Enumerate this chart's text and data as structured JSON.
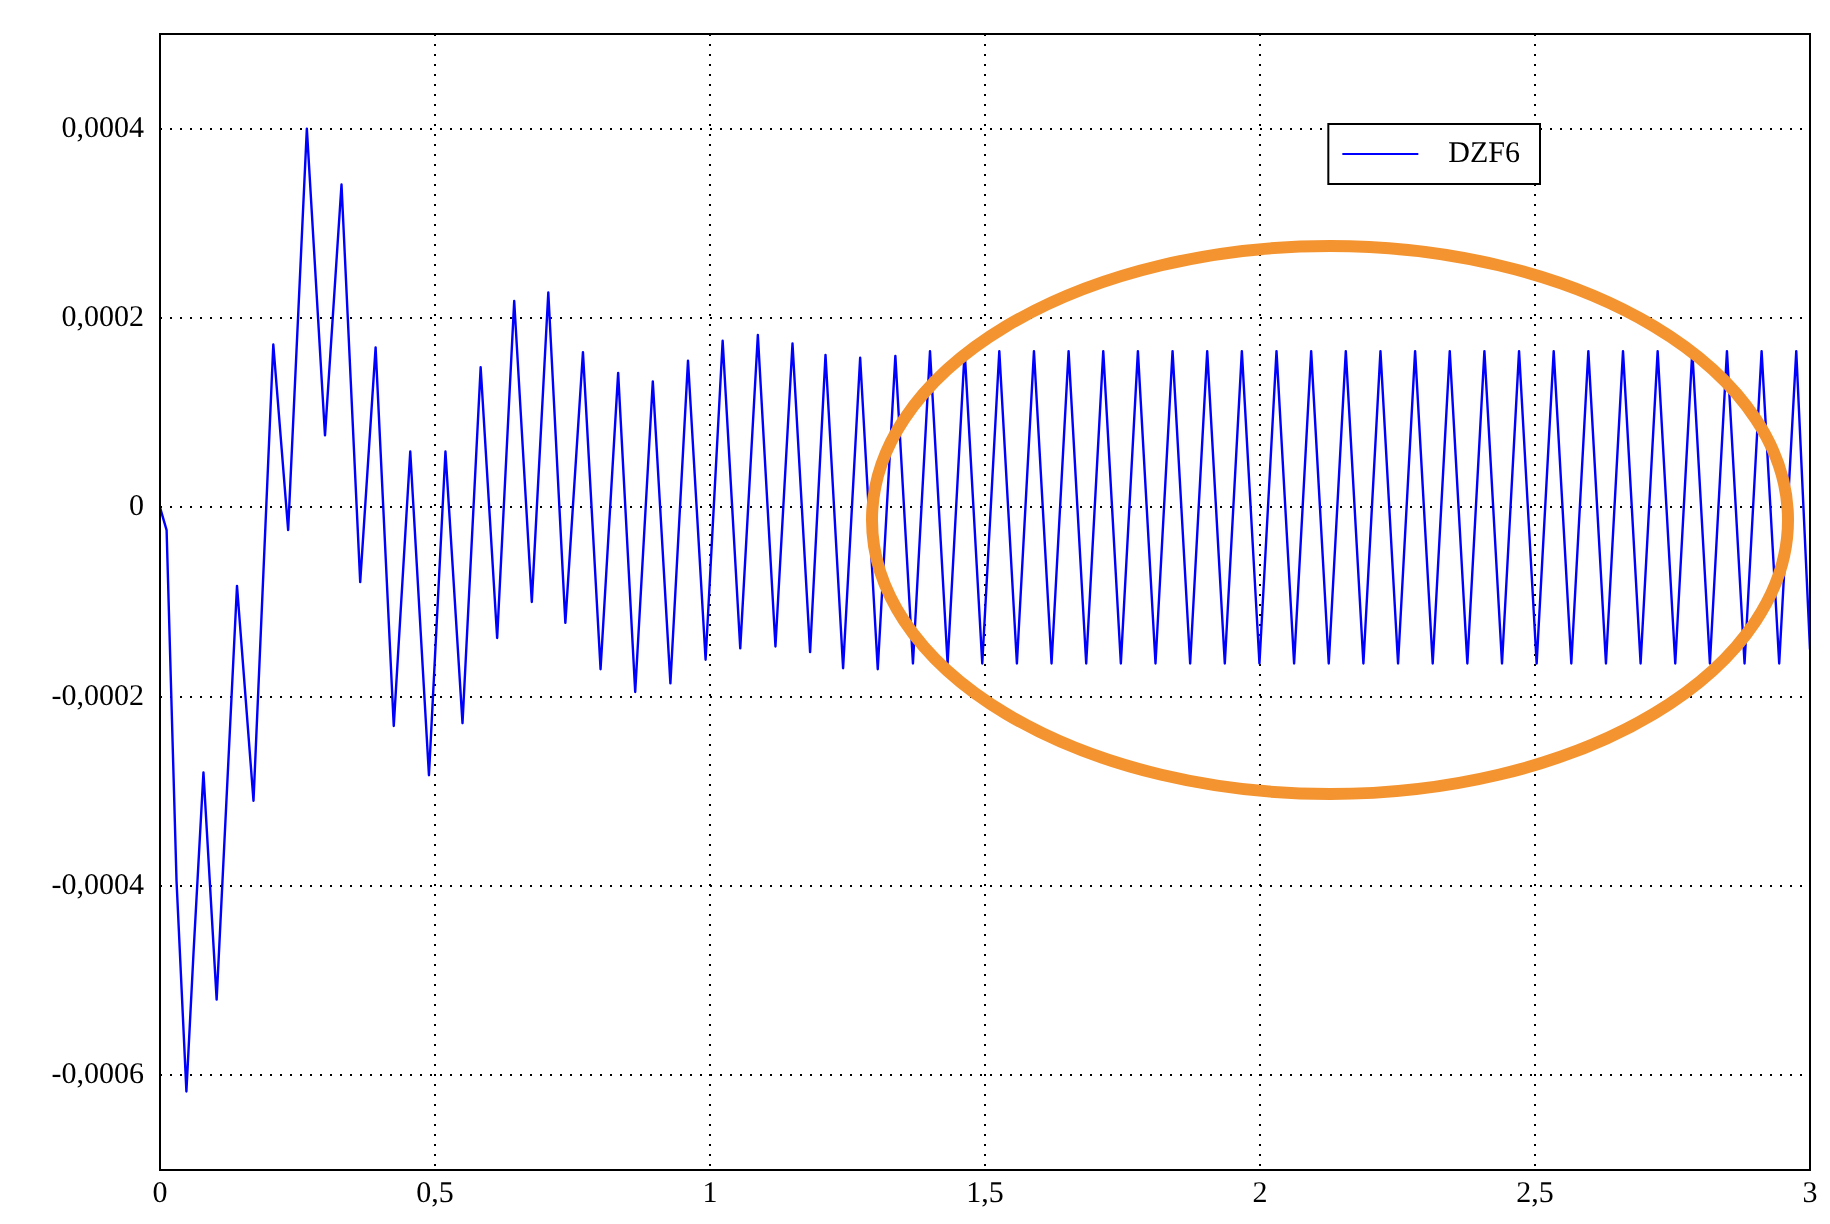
{
  "chart_data": {
    "type": "line",
    "legend": "top right",
    "grid": true,
    "line_style": "solid",
    "marker": "none",
    "xlim": [
      0,
      3
    ],
    "ylim": [
      -0.0007,
      0.0005
    ],
    "xticks": [
      0,
      {
        "value": 0.5,
        "label": "0,5"
      },
      1,
      {
        "value": 1.5,
        "label": "1,5"
      },
      2,
      {
        "value": 2.5,
        "label": "2,5"
      },
      3
    ],
    "yticks": [
      {
        "value": -0.0006,
        "label": "-0,0006"
      },
      {
        "value": -0.0004,
        "label": "-0,0004"
      },
      {
        "value": -0.0002,
        "label": "-0,0002"
      },
      0,
      {
        "value": 0.0002,
        "label": "0,0002"
      },
      {
        "value": 0.0004,
        "label": "0,0004"
      }
    ],
    "x": [
      0,
      0.012,
      0.03,
      0.048,
      0.061,
      0.079,
      0.103,
      0.14,
      0.17,
      0.206,
      0.233,
      0.267,
      0.3,
      0.33,
      0.364,
      0.392,
      0.425,
      0.455,
      0.489,
      0.519,
      0.55,
      0.583,
      0.613,
      0.644,
      0.676,
      0.706,
      0.737,
      0.769,
      0.801,
      0.833,
      0.864,
      0.896,
      0.928,
      0.96,
      0.992,
      1.023,
      1.055,
      1.087,
      1.119,
      1.15,
      1.182,
      1.21,
      1.242,
      1.273,
      1.305,
      1.337,
      1.369,
      1.4,
      1.432,
      1.463,
      1.495,
      1.526,
      1.558,
      1.589,
      1.621,
      1.652,
      1.684,
      1.715,
      1.747,
      1.778,
      1.81,
      1.841,
      1.873,
      1.904,
      1.936,
      1.967,
      1.999,
      2.03,
      2.062,
      2.093,
      2.125,
      2.156,
      2.188,
      2.219,
      2.251,
      2.282,
      2.314,
      2.345,
      2.377,
      2.408,
      2.44,
      2.471,
      2.503,
      2.534,
      2.566,
      2.597,
      2.629,
      2.66,
      2.692,
      2.723,
      2.755,
      2.786,
      2.818,
      2.849,
      2.881,
      2.912,
      2.944,
      2.975,
      3.0
    ],
    "series": [
      {
        "name": "DZF6",
        "color": "#0000ff",
        "values": [
          0,
          -2.4e-05,
          -0.000394,
          -0.000617,
          -0.00047,
          -0.00028,
          -0.00052,
          -8.3e-05,
          -0.00031,
          0.000172,
          -2.4e-05,
          0.0004,
          7.6e-05,
          0.000341,
          -7.9e-05,
          0.000169,
          -0.000231,
          5.9e-05,
          -0.000283,
          5.9e-05,
          -0.000228,
          0.000148,
          -0.000138,
          0.000218,
          -0.0001,
          0.000227,
          -0.000122,
          0.000164,
          -0.000171,
          0.000142,
          -0.000195,
          0.000133,
          -0.000186,
          0.000155,
          -0.000161,
          0.000176,
          -0.000149,
          0.000182,
          -0.000147,
          0.000173,
          -0.000153,
          0.000161,
          -0.00017,
          0.000158,
          -0.000171,
          0.00016,
          -0.000165,
          0.000165,
          -0.000165,
          0.000165,
          -0.000165,
          0.000165,
          -0.000165,
          0.000165,
          -0.000165,
          0.000165,
          -0.000165,
          0.000165,
          -0.000165,
          0.000165,
          -0.000165,
          0.000165,
          -0.000165,
          0.000165,
          -0.000165,
          0.000165,
          -0.000165,
          0.000165,
          -0.000165,
          0.000165,
          -0.000165,
          0.000165,
          -0.000165,
          0.000165,
          -0.000165,
          0.000165,
          -0.000165,
          0.000165,
          -0.000165,
          0.000165,
          -0.000165,
          0.000165,
          -0.000165,
          0.000165,
          -0.000165,
          0.000165,
          -0.000165,
          0.000165,
          -0.000165,
          0.000165,
          -0.000165,
          0.000165,
          -0.000165,
          0.000165,
          -0.000165,
          0.000165,
          -0.000165,
          0.000165,
          -0.00015
        ]
      }
    ]
  }
}
